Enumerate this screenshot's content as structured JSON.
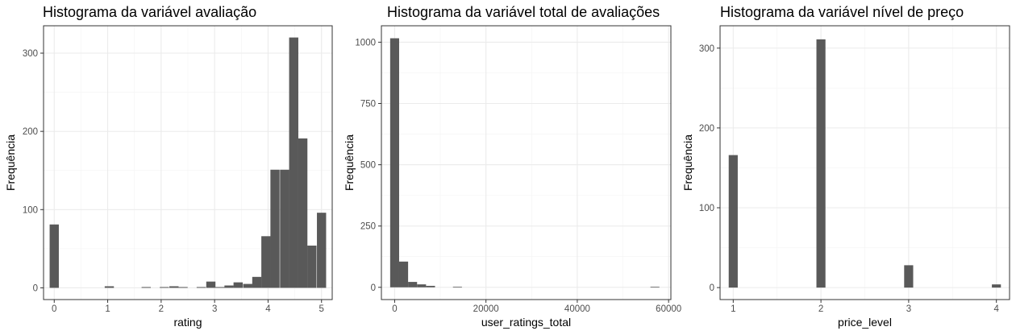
{
  "chart_data": [
    {
      "type": "bar",
      "title": "Histograma da variável avaliação",
      "xlabel": "rating",
      "ylabel": "Frequência",
      "xlim": [
        -0.2,
        5.2
      ],
      "ylim": [
        -15,
        335
      ],
      "xticks": [
        0,
        1,
        2,
        3,
        4,
        5
      ],
      "yticks": [
        0,
        100,
        200,
        300
      ],
      "bin_width": 0.172,
      "bins": [
        {
          "x": 0.0,
          "y": 81
        },
        {
          "x": 1.03,
          "y": 2
        },
        {
          "x": 1.72,
          "y": 1
        },
        {
          "x": 2.06,
          "y": 1
        },
        {
          "x": 2.24,
          "y": 2
        },
        {
          "x": 2.41,
          "y": 1
        },
        {
          "x": 2.75,
          "y": 1
        },
        {
          "x": 2.93,
          "y": 8
        },
        {
          "x": 3.1,
          "y": 1
        },
        {
          "x": 3.27,
          "y": 3
        },
        {
          "x": 3.44,
          "y": 7
        },
        {
          "x": 3.62,
          "y": 5
        },
        {
          "x": 3.79,
          "y": 14
        },
        {
          "x": 3.96,
          "y": 66
        },
        {
          "x": 4.13,
          "y": 151
        },
        {
          "x": 4.31,
          "y": 151
        },
        {
          "x": 4.48,
          "y": 320
        },
        {
          "x": 4.65,
          "y": 191
        },
        {
          "x": 4.82,
          "y": 54
        },
        {
          "x": 5.0,
          "y": 96
        }
      ]
    },
    {
      "type": "bar",
      "title": "Histograma da variável total de avaliações",
      "xlabel": "user_ratings_total",
      "ylabel": "Frequência",
      "xlim": [
        -2900,
        60500
      ],
      "ylim": [
        -50,
        1067
      ],
      "xticks": [
        0,
        20000,
        40000,
        60000
      ],
      "yticks": [
        0,
        250,
        500,
        750,
        1000
      ],
      "bin_width": 1965,
      "bins": [
        {
          "x": 0,
          "y": 1016
        },
        {
          "x": 1965,
          "y": 105
        },
        {
          "x": 3930,
          "y": 22
        },
        {
          "x": 5895,
          "y": 12
        },
        {
          "x": 7860,
          "y": 6
        },
        {
          "x": 13755,
          "y": 2
        },
        {
          "x": 57000,
          "y": 2
        }
      ]
    },
    {
      "type": "bar",
      "title": "Histograma da variável nível de preço",
      "xlabel": "price_level",
      "ylabel": "Frequência",
      "xlim": [
        0.85,
        4.15
      ],
      "ylim": [
        -15,
        328
      ],
      "xticks": [
        1,
        2,
        3,
        4
      ],
      "yticks": [
        0,
        100,
        200,
        300
      ],
      "bin_width": 0.103,
      "bins": [
        {
          "x": 1,
          "y": 166
        },
        {
          "x": 2,
          "y": 311
        },
        {
          "x": 3,
          "y": 28
        },
        {
          "x": 4,
          "y": 4
        }
      ]
    }
  ]
}
